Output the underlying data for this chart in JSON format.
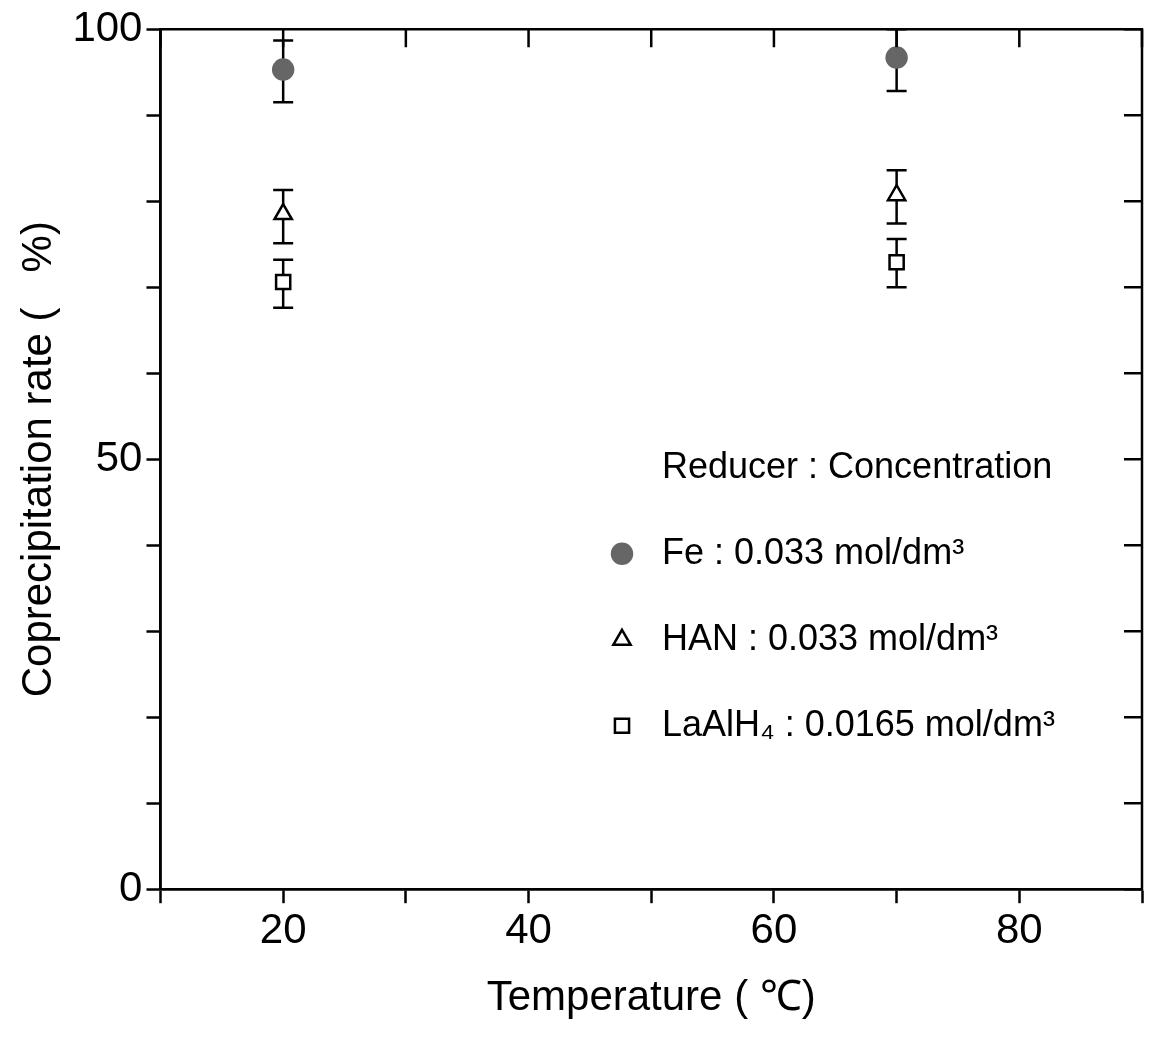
{
  "chart_data": {
    "type": "scatter",
    "xlabel": "Temperature ( ℃)",
    "ylabel": "Coprecipitation rate (   %)",
    "xlim": [
      10,
      90
    ],
    "xticks": [
      {
        "value": 10,
        "label": null
      },
      20,
      {
        "value": 30,
        "label": null
      },
      40,
      {
        "value": 50,
        "label": null
      },
      60,
      {
        "value": 70,
        "label": null
      },
      80,
      {
        "value": 90,
        "label": null
      }
    ],
    "ylim": [
      0,
      100
    ],
    "yticks": [
      0,
      {
        "value": 10,
        "label": null
      },
      {
        "value": 20,
        "label": null
      },
      {
        "value": 30,
        "label": null
      },
      {
        "value": 40,
        "label": null
      },
      50,
      {
        "value": 60,
        "label": null
      },
      {
        "value": 70,
        "label": null
      },
      {
        "value": 80,
        "label": null
      },
      {
        "value": 90,
        "label": null
      },
      100
    ],
    "x": [
      20,
      70
    ],
    "grid": false,
    "legend": "right",
    "legend_title": "Reducer : Concentration",
    "series": [
      {
        "name": "Fe : 0.033 mol/dm³",
        "color": "#666666",
        "marker": "circle",
        "values": [
          95.3,
          96.7
        ],
        "errors": [
          [
            91.5,
            98.7
          ],
          [
            92.8,
            100
          ]
        ]
      },
      {
        "name": "HAN : 0.033 mol/dm³",
        "color": "#000000",
        "marker": "triangle",
        "values": [
          78.5,
          80.7
        ],
        "errors": [
          [
            75.1,
            81.3
          ],
          [
            77.4,
            83.6
          ]
        ]
      },
      {
        "name": "LaAlH₄ : 0.0165 mol/dm³",
        "color": "#000000",
        "marker": "square",
        "values": [
          70.6,
          72.9
        ],
        "errors": [
          [
            67.6,
            73.2
          ],
          [
            70.0,
            75.6
          ]
        ]
      }
    ]
  }
}
